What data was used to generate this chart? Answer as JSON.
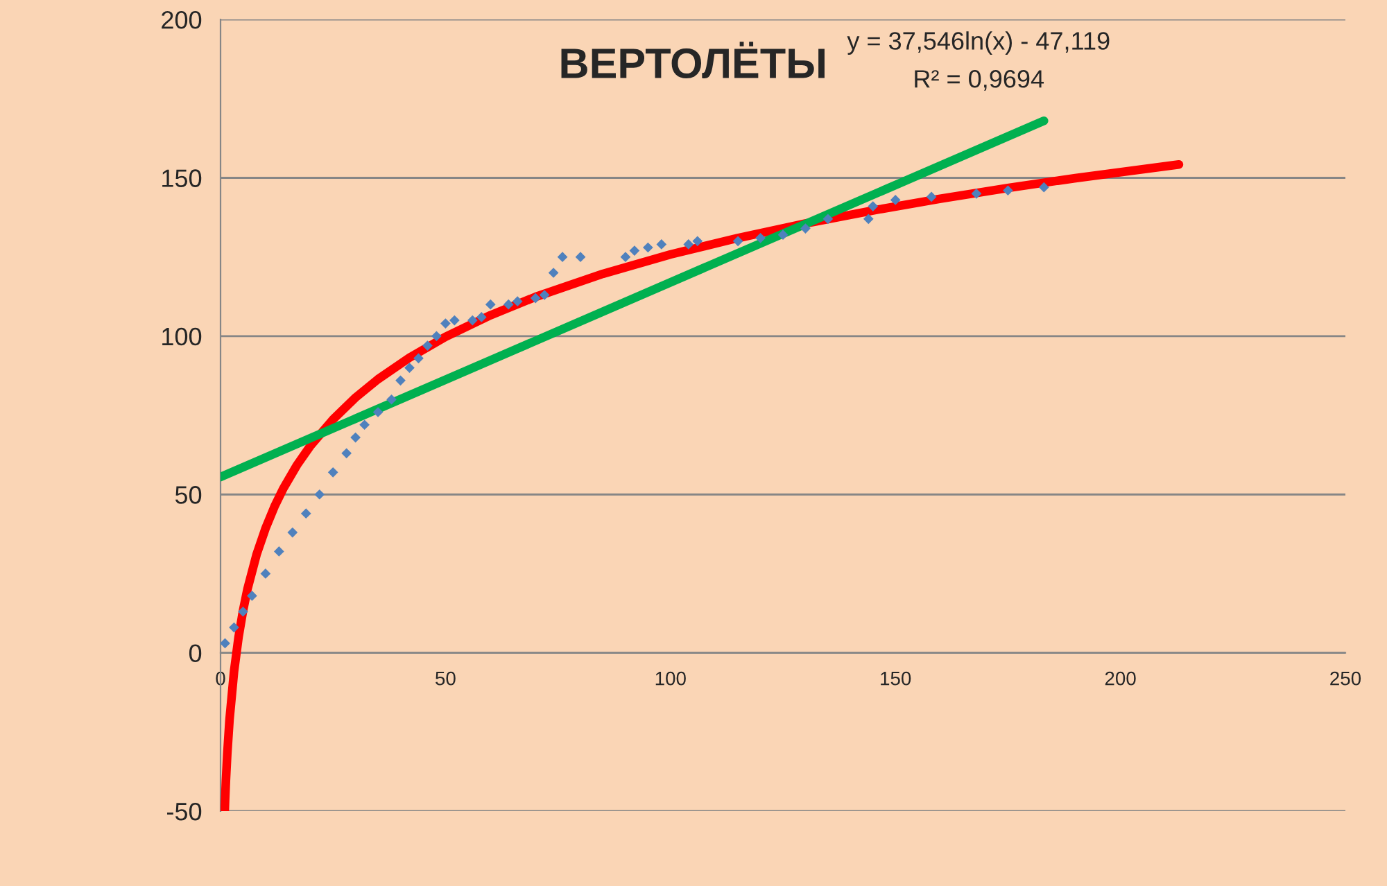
{
  "chart_data": {
    "type": "scatter",
    "title": "ВЕРТОЛЁТЫ",
    "annotations": [
      "y = 37,546ln(x) - 47,119",
      "R² = 0,9694"
    ],
    "xlim": [
      0,
      250
    ],
    "xticks": [
      0,
      50,
      100,
      150,
      200,
      250
    ],
    "ylim": [
      -50,
      200
    ],
    "yticks": [
      -50,
      0,
      50,
      100,
      150,
      200
    ],
    "grid": "y",
    "legend": false,
    "series": [
      {
        "marker": "diamond",
        "color": "#4f81bd",
        "x": [
          1,
          3,
          5,
          7,
          10,
          13,
          16,
          19,
          22,
          25,
          28,
          30,
          32,
          35,
          38,
          40,
          42,
          44,
          46,
          48,
          50,
          52,
          56,
          58,
          60,
          64,
          66,
          70,
          72,
          74,
          76,
          80,
          90,
          92,
          95,
          98,
          104,
          106,
          115,
          120,
          125,
          130,
          135,
          144,
          145,
          150,
          158,
          168,
          175,
          183
        ],
        "values": [
          3,
          8,
          13,
          18,
          25,
          32,
          38,
          44,
          50,
          57,
          63,
          68,
          72,
          76,
          80,
          86,
          90,
          93,
          97,
          100,
          104,
          105,
          105,
          106,
          110,
          110,
          111,
          112,
          113,
          120,
          125,
          125,
          125,
          127,
          128,
          129,
          129,
          130,
          130,
          131,
          132,
          134,
          137,
          137,
          141,
          143,
          144,
          145,
          146,
          147
        ]
      },
      {
        "type": "line",
        "color": "#ff0000",
        "x": [
          0.93,
          1,
          1.2,
          1.5,
          2,
          3,
          4,
          5,
          6,
          8,
          10,
          12,
          14,
          17,
          20,
          25,
          30,
          35,
          42,
          50,
          60,
          70,
          85,
          100,
          115,
          130,
          145,
          160,
          175,
          190,
          213
        ],
        "values": [
          -50,
          -47.1,
          -40.3,
          -31.9,
          -21.1,
          -5.9,
          4.9,
          13.3,
          20.2,
          31.0,
          39.3,
          46.2,
          52.0,
          59.3,
          65.4,
          73.7,
          80.6,
          86.4,
          93.2,
          99.8,
          106.6,
          112.4,
          119.7,
          125.8,
          131.0,
          135.6,
          139.7,
          143.4,
          146.8,
          149.9,
          154.2
        ]
      },
      {
        "type": "line",
        "color": "#00b050",
        "x": [
          0,
          183
        ],
        "values": [
          55.5,
          168
        ]
      }
    ]
  }
}
